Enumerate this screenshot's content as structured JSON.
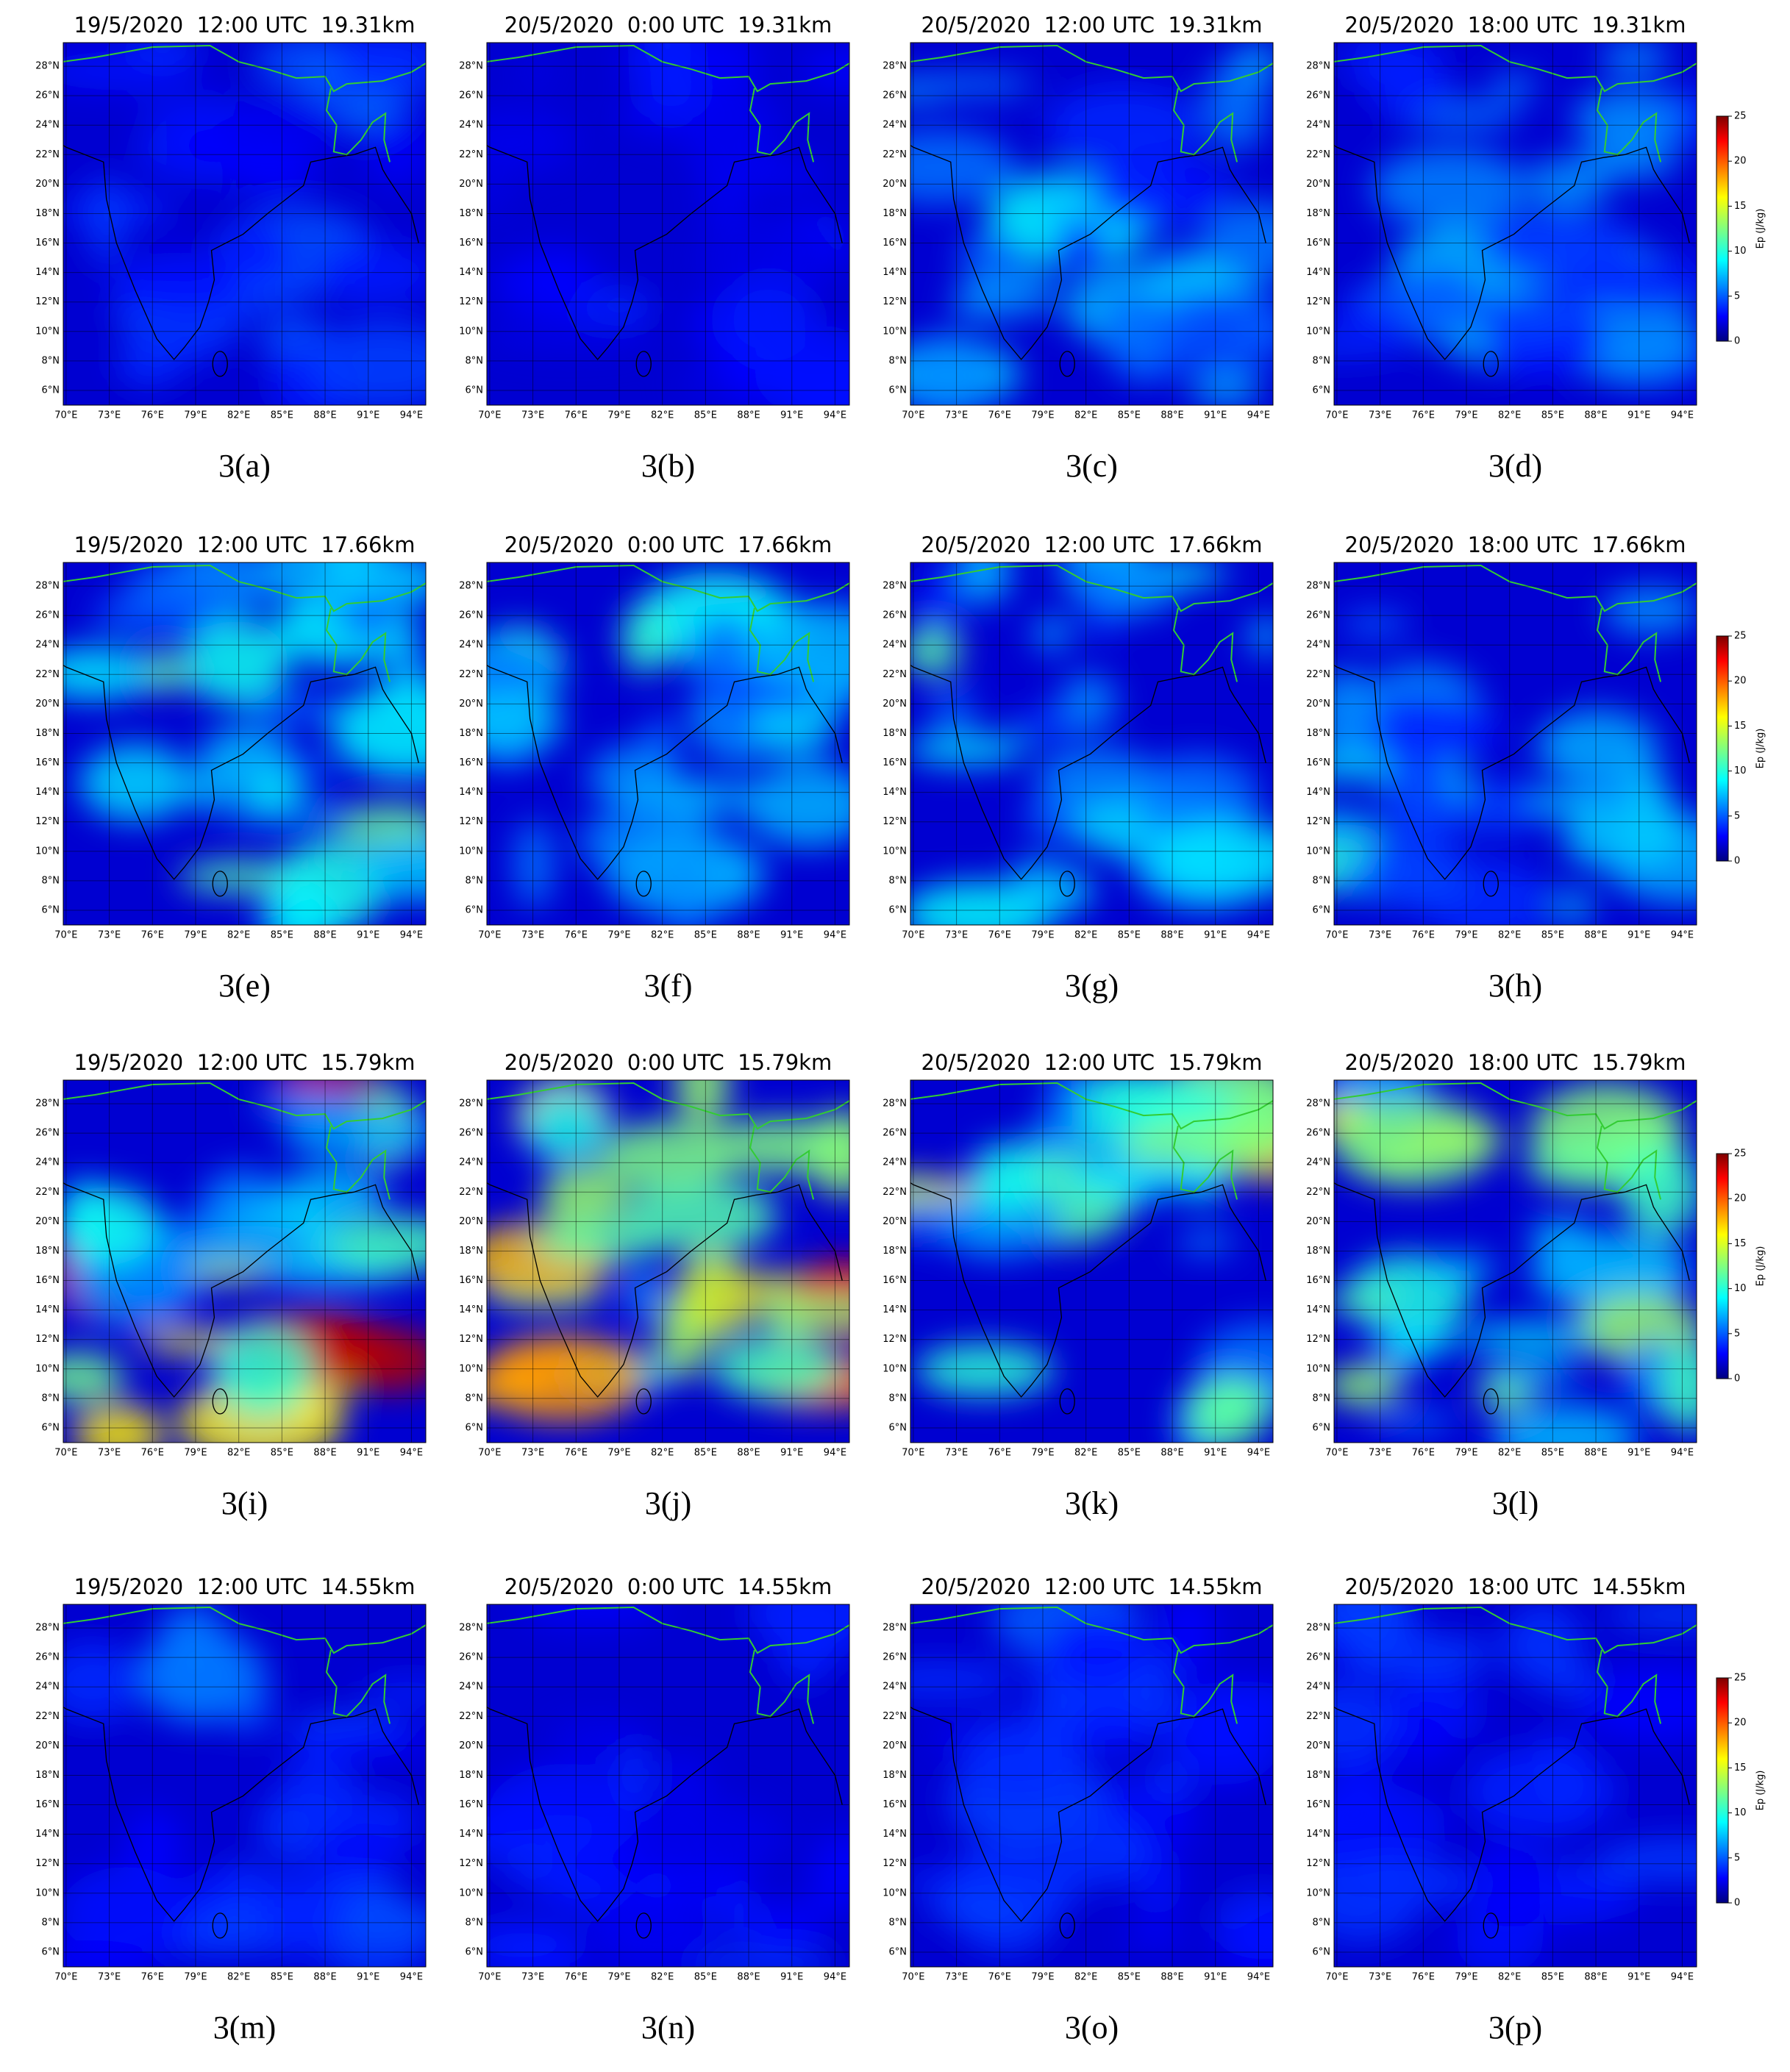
{
  "panels": [
    {
      "title": "19/5/2020  12:00 UTC  19.31km",
      "label": "3(a)"
    },
    {
      "title": "20/5/2020  0:00 UTC  19.31km",
      "label": "3(b)"
    },
    {
      "title": "20/5/2020  12:00 UTC  19.31km",
      "label": "3(c)"
    },
    {
      "title": "20/5/2020  18:00 UTC  19.31km",
      "label": "3(d)"
    },
    {
      "title": "19/5/2020  12:00 UTC  17.66km",
      "label": "3(e)"
    },
    {
      "title": "20/5/2020  0:00 UTC  17.66km",
      "label": "3(f)"
    },
    {
      "title": "20/5/2020  12:00 UTC  17.66km",
      "label": "3(g)"
    },
    {
      "title": "20/5/2020  18:00 UTC  17.66km",
      "label": "3(h)"
    },
    {
      "title": "19/5/2020  12:00 UTC  15.79km",
      "label": "3(i)"
    },
    {
      "title": "20/5/2020  0:00 UTC  15.79km",
      "label": "3(j)"
    },
    {
      "title": "20/5/2020  12:00 UTC  15.79km",
      "label": "3(k)"
    },
    {
      "title": "20/5/2020  18:00 UTC  15.79km",
      "label": "3(l)"
    },
    {
      "title": "19/5/2020  12:00 UTC  14.55km",
      "label": "3(m)"
    },
    {
      "title": "20/5/2020  0:00 UTC  14.55km",
      "label": "3(n)"
    },
    {
      "title": "20/5/2020  12:00 UTC  14.55km",
      "label": "3(o)"
    },
    {
      "title": "20/5/2020  18:00 UTC  14.55km",
      "label": "3(p)"
    }
  ],
  "lon_lim": [
    69.8,
    95
  ],
  "lat_lim": [
    5,
    29.6
  ],
  "lon_ticks": [
    {
      "value": 70,
      "label": "70°E"
    },
    {
      "value": 73,
      "label": "73°E"
    },
    {
      "value": 76,
      "label": "76°E"
    },
    {
      "value": 79,
      "label": "79°E"
    },
    {
      "value": 82,
      "label": "82°E"
    },
    {
      "value": 85,
      "label": "85°E"
    },
    {
      "value": 88,
      "label": "88°E"
    },
    {
      "value": 91,
      "label": "91°E"
    },
    {
      "value": 94,
      "label": "94°E"
    }
  ],
  "lat_ticks": [
    {
      "value": 6,
      "label": "6°N"
    },
    {
      "value": 8,
      "label": "8°N"
    },
    {
      "value": 10,
      "label": "10°N"
    },
    {
      "value": 12,
      "label": "12°N"
    },
    {
      "value": 14,
      "label": "14°N"
    },
    {
      "value": 16,
      "label": "16°N"
    },
    {
      "value": 18,
      "label": "18°N"
    },
    {
      "value": 20,
      "label": "20°N"
    },
    {
      "value": 22,
      "label": "22°N"
    },
    {
      "value": 24,
      "label": "24°N"
    },
    {
      "value": 26,
      "label": "26°N"
    },
    {
      "value": 28,
      "label": "28°N"
    }
  ],
  "colorbar": {
    "label": "Ep (J/kg)",
    "lim": [
      0,
      25
    ],
    "ticks": [
      0,
      5,
      10,
      15,
      20,
      25
    ]
  }
}
